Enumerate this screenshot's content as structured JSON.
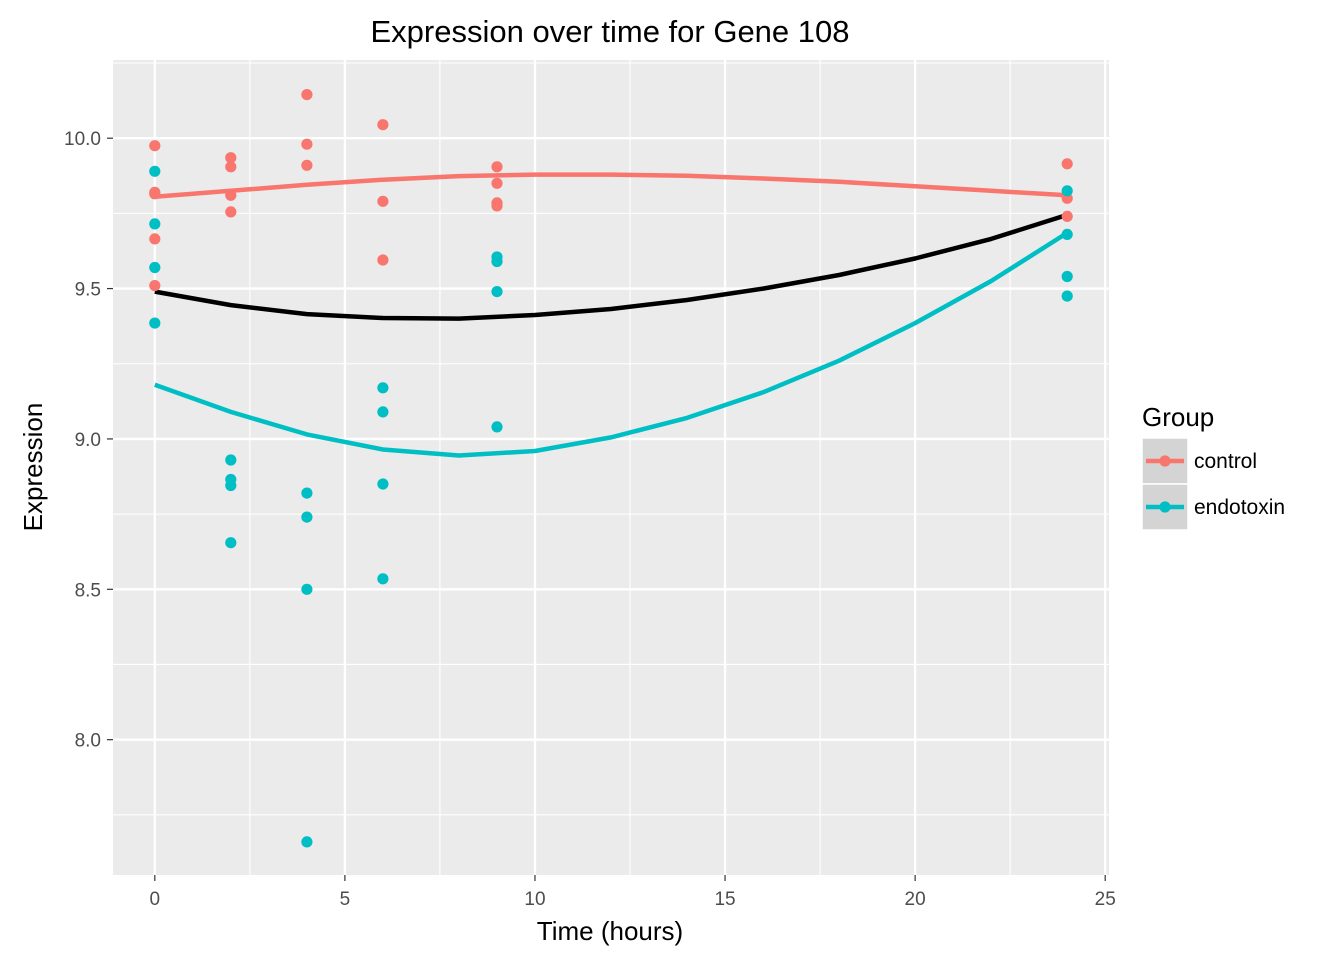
{
  "chart_data": {
    "type": "scatter",
    "title": "Expression over time for Gene 108",
    "xlabel": "Time (hours)",
    "ylabel": "Expression",
    "xlim": [
      -1.1,
      25.1
    ],
    "ylim": [
      7.55,
      10.26
    ],
    "x_ticks": [
      0,
      5,
      10,
      15,
      20,
      25
    ],
    "x_tick_labels": [
      "0",
      "5",
      "10",
      "15",
      "20",
      "25"
    ],
    "y_ticks": [
      8.0,
      8.5,
      9.0,
      9.5,
      10.0
    ],
    "y_tick_labels": [
      "8.0",
      "8.5",
      "9.0",
      "9.5",
      "10.0"
    ],
    "grid": true,
    "legend": {
      "title": "Group",
      "position": "right"
    },
    "series": [
      {
        "name": "control",
        "color": "#F8766D",
        "points": [
          [
            0,
            9.975
          ],
          [
            0,
            9.82
          ],
          [
            0,
            9.815
          ],
          [
            0,
            9.665
          ],
          [
            0,
            9.51
          ],
          [
            2,
            9.935
          ],
          [
            2,
            9.905
          ],
          [
            2,
            9.81
          ],
          [
            2,
            9.755
          ],
          [
            4,
            10.145
          ],
          [
            4,
            9.98
          ],
          [
            4,
            9.91
          ],
          [
            6,
            10.045
          ],
          [
            6,
            9.79
          ],
          [
            6,
            9.595
          ],
          [
            9,
            9.905
          ],
          [
            9,
            9.85
          ],
          [
            9,
            9.785
          ],
          [
            9,
            9.775
          ],
          [
            24,
            9.915
          ],
          [
            24,
            9.8
          ],
          [
            24,
            9.74
          ]
        ],
        "smooth": [
          [
            0,
            9.805
          ],
          [
            2,
            9.825
          ],
          [
            4,
            9.845
          ],
          [
            6,
            9.862
          ],
          [
            8,
            9.874
          ],
          [
            10,
            9.879
          ],
          [
            12,
            9.879
          ],
          [
            14,
            9.875
          ],
          [
            16,
            9.866
          ],
          [
            18,
            9.855
          ],
          [
            20,
            9.84
          ],
          [
            22,
            9.825
          ],
          [
            24,
            9.81
          ]
        ]
      },
      {
        "name": "endotoxin",
        "color": "#00BFC4",
        "points": [
          [
            0,
            9.89
          ],
          [
            0,
            9.715
          ],
          [
            0,
            9.57
          ],
          [
            0,
            9.385
          ],
          [
            2,
            8.93
          ],
          [
            2,
            8.865
          ],
          [
            2,
            8.845
          ],
          [
            2,
            8.655
          ],
          [
            4,
            8.82
          ],
          [
            4,
            8.74
          ],
          [
            4,
            8.5
          ],
          [
            4,
            7.66
          ],
          [
            6,
            9.17
          ],
          [
            6,
            9.09
          ],
          [
            6,
            8.85
          ],
          [
            6,
            8.535
          ],
          [
            9,
            9.605
          ],
          [
            9,
            9.59
          ],
          [
            9,
            9.49
          ],
          [
            9,
            9.04
          ],
          [
            24,
            9.825
          ],
          [
            24,
            9.68
          ],
          [
            24,
            9.54
          ],
          [
            24,
            9.475
          ]
        ],
        "smooth": [
          [
            0,
            9.18
          ],
          [
            2,
            9.09
          ],
          [
            4,
            9.015
          ],
          [
            6,
            8.965
          ],
          [
            8,
            8.945
          ],
          [
            10,
            8.96
          ],
          [
            12,
            9.005
          ],
          [
            14,
            9.07
          ],
          [
            16,
            9.155
          ],
          [
            18,
            9.26
          ],
          [
            20,
            9.385
          ],
          [
            22,
            9.525
          ],
          [
            24,
            9.685
          ]
        ]
      }
    ],
    "overall_smooth": {
      "color": "#000000",
      "points": [
        [
          0,
          9.49
        ],
        [
          2,
          9.445
        ],
        [
          4,
          9.415
        ],
        [
          6,
          9.402
        ],
        [
          8,
          9.4
        ],
        [
          10,
          9.412
        ],
        [
          12,
          9.432
        ],
        [
          14,
          9.462
        ],
        [
          16,
          9.5
        ],
        [
          18,
          9.545
        ],
        [
          20,
          9.6
        ],
        [
          22,
          9.665
        ],
        [
          24,
          9.745
        ]
      ]
    },
    "colors": {
      "panel": "#EBEBEB",
      "grid": "#FFFFFF",
      "legend_key": "#D4D4D4"
    }
  }
}
